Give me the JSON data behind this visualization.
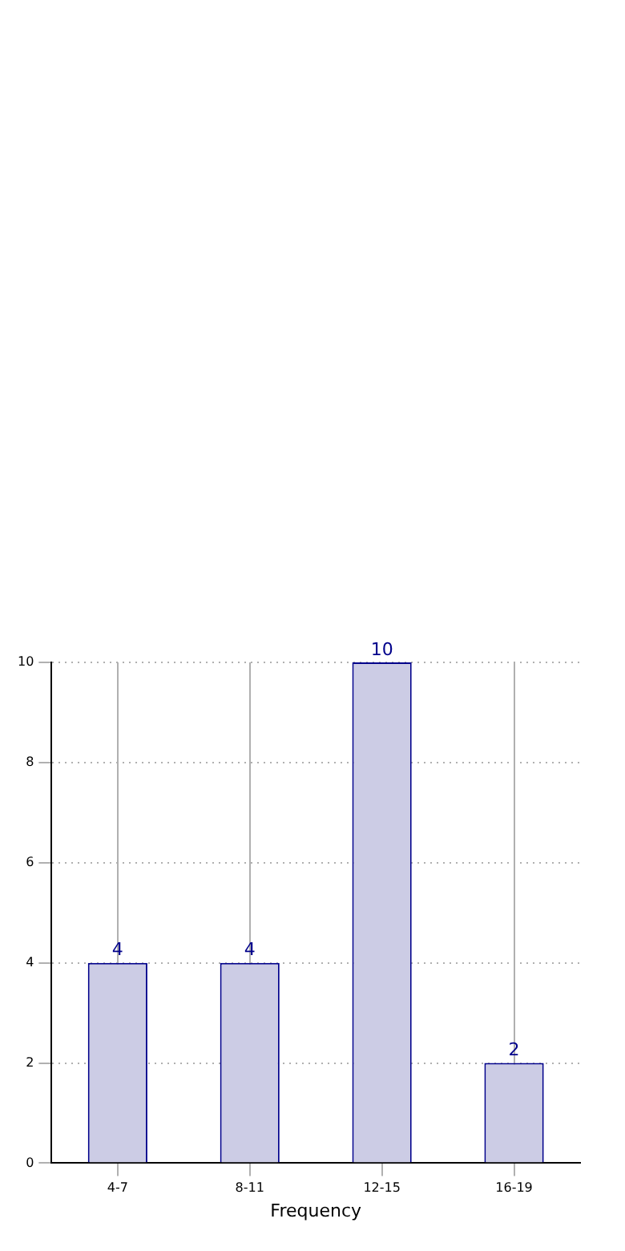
{
  "chart_data": {
    "type": "bar",
    "xlabel": "Frequency",
    "categories": [
      "4-7",
      "8-11",
      "12-15",
      "16-19"
    ],
    "values": [
      4,
      4,
      10,
      2
    ],
    "color": "#ccccE5",
    "ylim": [
      0,
      10
    ],
    "yticks": [
      0,
      2,
      4,
      6,
      8,
      10
    ],
    "grid": true,
    "data_labels": true
  }
}
